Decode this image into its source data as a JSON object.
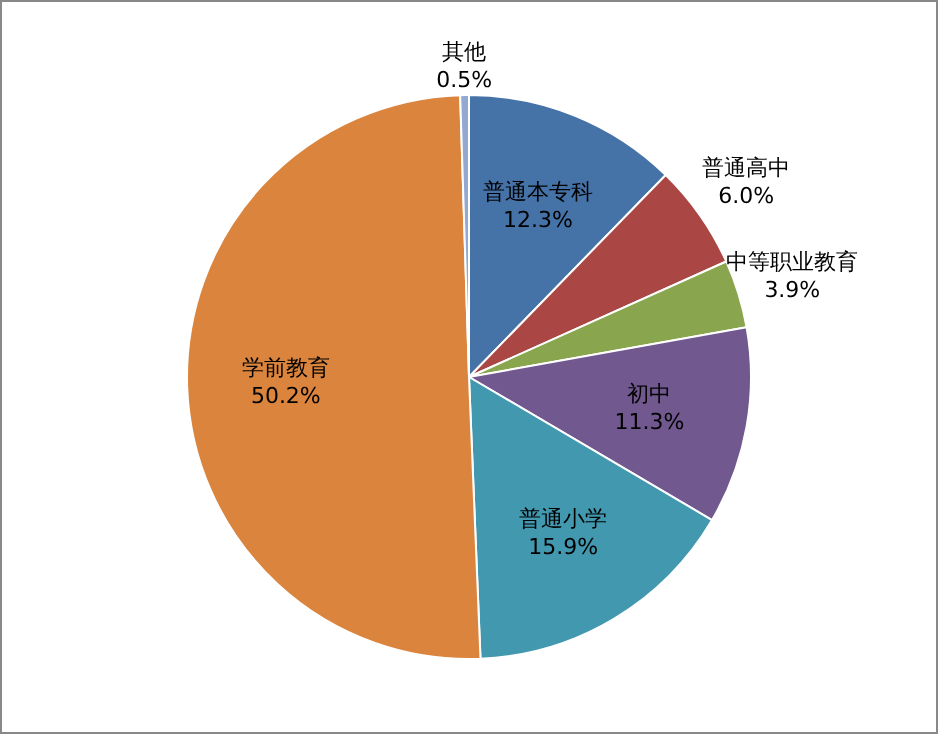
{
  "chart_data": {
    "type": "pie",
    "categories": [
      "普通本专科",
      "普通高中",
      "中等职业教育",
      "初中",
      "普通小学",
      "学前教育",
      "其他"
    ],
    "values": [
      12.3,
      6.0,
      3.9,
      11.3,
      15.9,
      50.2,
      0.5
    ],
    "colors": [
      "#4572a7",
      "#aa4643",
      "#89a54e",
      "#71588f",
      "#4198af",
      "#db843d",
      "#93a9cf"
    ],
    "value_labels": [
      "12.3%",
      "6.0%",
      "3.9%",
      "11.3%",
      "15.9%",
      "50.2%",
      "0.5%"
    ],
    "legend": false
  }
}
